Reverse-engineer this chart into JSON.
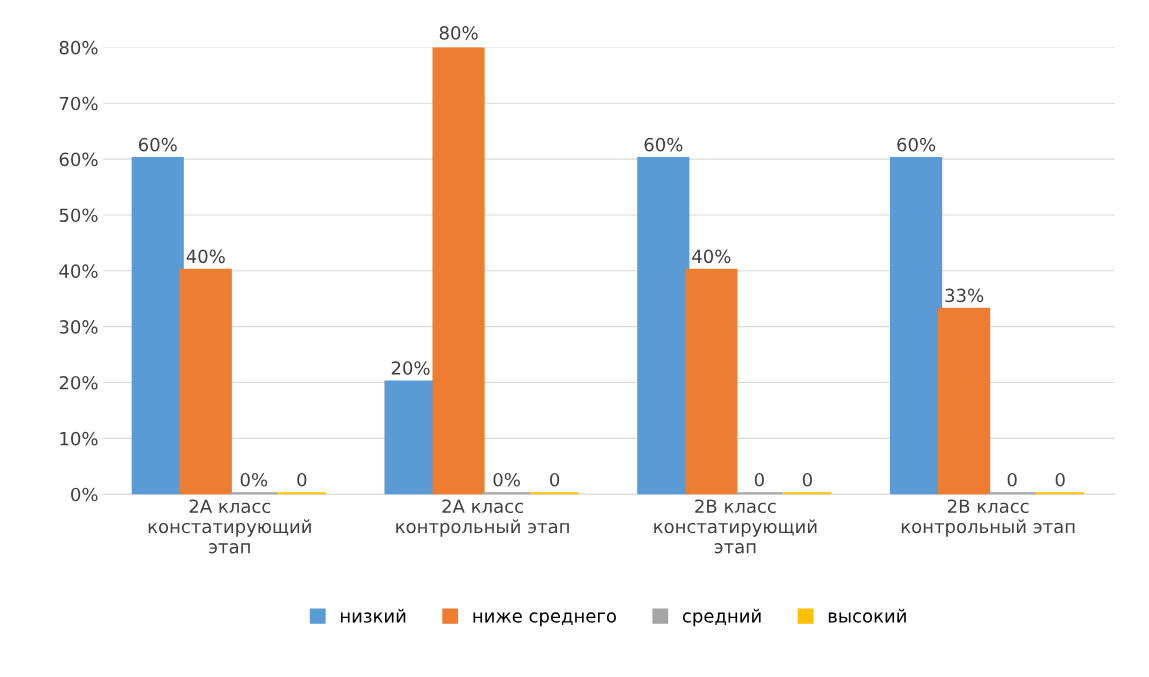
{
  "chart_data": {
    "type": "bar",
    "categories": [
      "2А класс\nконстатирующий\nэтап",
      "2А класс\nконтрольный этап",
      "2В класс\nконстатирующий\nэтап",
      "2В класс\nконтрольный этап"
    ],
    "series": [
      {
        "name": "низкий",
        "color": "#5b9bd5",
        "values": [
          60,
          20,
          60,
          60
        ],
        "value_labels": [
          "60%",
          "20%",
          "60%",
          "60%"
        ]
      },
      {
        "name": "ниже среднего",
        "color": "#ed7d31",
        "values": [
          40,
          80,
          40,
          33
        ],
        "value_labels": [
          "40%",
          "80%",
          "40%",
          "33%"
        ]
      },
      {
        "name": "средний",
        "color": "#a5a5a5",
        "values": [
          0,
          0,
          0,
          0
        ],
        "value_labels": [
          "0%",
          "0%",
          "0",
          "0"
        ]
      },
      {
        "name": "высокий",
        "color": "#ffc000",
        "values": [
          0,
          0,
          0,
          0
        ],
        "value_labels": [
          "0",
          "0",
          "0",
          "0"
        ]
      }
    ],
    "ylim": [
      0,
      80
    ],
    "yticks": [
      {
        "value": 0,
        "label": "0%"
      },
      {
        "value": 10,
        "label": "10%"
      },
      {
        "value": 20,
        "label": "20%"
      },
      {
        "value": 30,
        "label": "30%"
      },
      {
        "value": 40,
        "label": "40%"
      },
      {
        "value": 50,
        "label": "50%"
      },
      {
        "value": 60,
        "label": "60%"
      },
      {
        "value": 70,
        "label": "70%"
      },
      {
        "value": 80,
        "label": "80%"
      }
    ],
    "grid": "y",
    "legend": "bottom"
  }
}
